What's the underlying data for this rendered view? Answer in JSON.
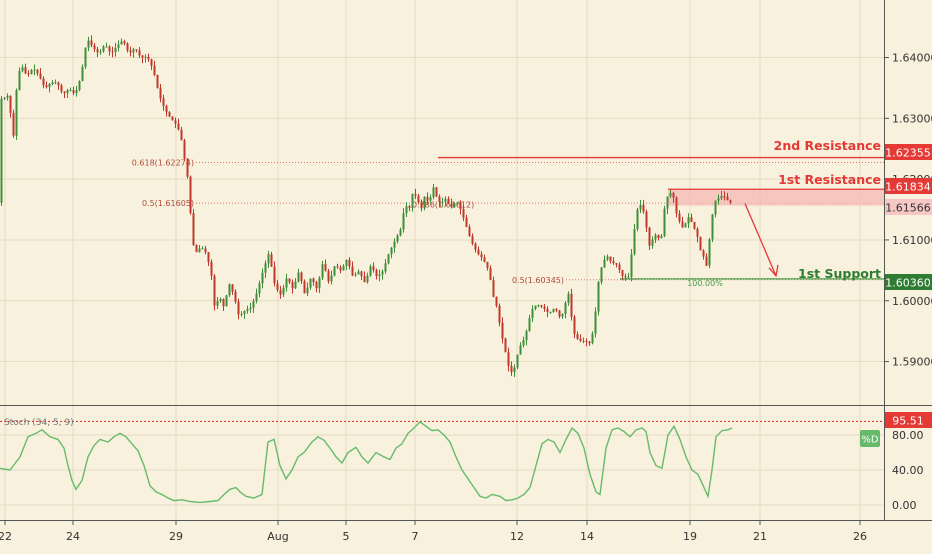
{
  "colors": {
    "background": "#f7f1de",
    "up_candle": "#3f8f3a",
    "down_candle": "#c0392b",
    "resistance": "#e53935",
    "support": "#43a047",
    "stoch_line": "#66bb6a",
    "grid": "#e6dcc2"
  },
  "chart_data": [
    {
      "type": "candlestick",
      "title": "",
      "x_tick_labels": [
        "22",
        "24",
        "29",
        "Aug",
        "5",
        "7",
        "12",
        "14",
        "19",
        "21",
        "26"
      ],
      "y_tick_labels": [
        "1.64000",
        "1.63000",
        "1.62000",
        "1.61000",
        "1.60000",
        "1.59000"
      ],
      "ylim": [
        1.5845,
        1.6465
      ],
      "grid": true,
      "price_path": [
        [
          0,
          1.6331
        ],
        [
          6,
          1.6334
        ],
        [
          10,
          1.6339
        ],
        [
          14,
          1.6259
        ],
        [
          18,
          1.6359
        ],
        [
          22,
          1.6389
        ],
        [
          28,
          1.6369
        ],
        [
          34,
          1.6383
        ],
        [
          40,
          1.6371
        ],
        [
          46,
          1.6349
        ],
        [
          52,
          1.6359
        ],
        [
          58,
          1.6359
        ],
        [
          64,
          1.6339
        ],
        [
          70,
          1.6349
        ],
        [
          76,
          1.6339
        ],
        [
          82,
          1.6369
        ],
        [
          88,
          1.6432
        ],
        [
          94,
          1.6416
        ],
        [
          100,
          1.6406
        ],
        [
          106,
          1.6422
        ],
        [
          112,
          1.6406
        ],
        [
          118,
          1.6419
        ],
        [
          124,
          1.6429
        ],
        [
          130,
          1.6406
        ],
        [
          136,
          1.6416
        ],
        [
          142,
          1.6399
        ],
        [
          148,
          1.6402
        ],
        [
          152,
          1.6389
        ],
        [
          156,
          1.6369
        ],
        [
          160,
          1.6339
        ],
        [
          166,
          1.6314
        ],
        [
          172,
          1.6299
        ],
        [
          178,
          1.6289
        ],
        [
          182,
          1.6269
        ],
        [
          186,
          1.6229
        ],
        [
          190,
          1.6189
        ],
        [
          193,
          1.6099
        ],
        [
          197,
          1.6079
        ],
        [
          202,
          1.6089
        ],
        [
          207,
          1.6079
        ],
        [
          212,
          1.6049
        ],
        [
          216,
          1.5984
        ],
        [
          220,
          1.6009
        ],
        [
          225,
          1.5989
        ],
        [
          230,
          1.6029
        ],
        [
          235,
          1.6009
        ],
        [
          240,
          1.5974
        ],
        [
          246,
          1.5984
        ],
        [
          252,
          1.5989
        ],
        [
          258,
          1.6014
        ],
        [
          264,
          1.6049
        ],
        [
          270,
          1.6079
        ],
        [
          276,
          1.6024
        ],
        [
          282,
          1.6009
        ],
        [
          288,
          1.6039
        ],
        [
          294,
          1.6019
        ],
        [
          300,
          1.6049
        ],
        [
          306,
          1.6009
        ],
        [
          312,
          1.6039
        ],
        [
          318,
          1.6019
        ],
        [
          324,
          1.6064
        ],
        [
          330,
          1.6029
        ],
        [
          336,
          1.6059
        ],
        [
          342,
          1.6049
        ],
        [
          348,
          1.6069
        ],
        [
          354,
          1.6039
        ],
        [
          360,
          1.6049
        ],
        [
          366,
          1.6029
        ],
        [
          372,
          1.6059
        ],
        [
          378,
          1.6039
        ],
        [
          384,
          1.6049
        ],
        [
          390,
          1.6079
        ],
        [
          396,
          1.6099
        ],
        [
          402,
          1.6119
        ],
        [
          406,
          1.6159
        ],
        [
          410,
          1.6149
        ],
        [
          414,
          1.6179
        ],
        [
          418,
          1.6169
        ],
        [
          422,
          1.6149
        ],
        [
          426,
          1.6174
        ],
        [
          430,
          1.6159
        ],
        [
          434,
          1.6189
        ],
        [
          438,
          1.6169
        ],
        [
          442,
          1.6159
        ],
        [
          446,
          1.6169
        ],
        [
          452,
          1.6154
        ],
        [
          458,
          1.6164
        ],
        [
          462,
          1.6149
        ],
        [
          466,
          1.6129
        ],
        [
          472,
          1.6099
        ],
        [
          478,
          1.6079
        ],
        [
          484,
          1.6069
        ],
        [
          490,
          1.6049
        ],
        [
          494,
          1.6009
        ],
        [
          498,
          1.5989
        ],
        [
          502,
          1.5949
        ],
        [
          506,
          1.5919
        ],
        [
          510,
          1.5889
        ],
        [
          514,
          1.5879
        ],
        [
          518,
          1.5909
        ],
        [
          522,
          1.5929
        ],
        [
          526,
          1.5939
        ],
        [
          530,
          1.5969
        ],
        [
          534,
          1.5989
        ],
        [
          538,
          1.5994
        ],
        [
          544,
          1.5989
        ],
        [
          550,
          1.5979
        ],
        [
          556,
          1.5989
        ],
        [
          562,
          1.5969
        ],
        [
          566,
          1.5994
        ],
        [
          570,
          1.6014
        ],
        [
          574,
          1.5949
        ],
        [
          580,
          1.5934
        ],
        [
          586,
          1.5934
        ],
        [
          592,
          1.5929
        ],
        [
          596,
          1.5974
        ],
        [
          600,
          1.6039
        ],
        [
          604,
          1.6064
        ],
        [
          608,
          1.6074
        ],
        [
          612,
          1.6064
        ],
        [
          618,
          1.6059
        ],
        [
          624,
          1.6039
        ],
        [
          630,
          1.6039
        ],
        [
          634,
          1.6099
        ],
        [
          638,
          1.6149
        ],
        [
          642,
          1.6159
        ],
        [
          646,
          1.6139
        ],
        [
          650,
          1.6089
        ],
        [
          656,
          1.6109
        ],
        [
          662,
          1.6099
        ],
        [
          666,
          1.6159
        ],
        [
          670,
          1.6179
        ],
        [
          674,
          1.6174
        ],
        [
          678,
          1.6139
        ],
        [
          684,
          1.6119
        ],
        [
          690,
          1.6139
        ],
        [
          694,
          1.6124
        ],
        [
          698,
          1.6109
        ],
        [
          702,
          1.6079
        ],
        [
          706,
          1.6069
        ],
        [
          708,
          1.6054
        ],
        [
          712,
          1.6129
        ],
        [
          716,
          1.6164
        ],
        [
          720,
          1.6169
        ],
        [
          724,
          1.6174
        ],
        [
          728,
          1.6166
        ],
        [
          732,
          1.6161
        ]
      ],
      "levels": [
        {
          "label": "2nd Resistance",
          "value": "1.62355",
          "price": 1.62355,
          "kind": "resistance"
        },
        {
          "label": "1st Resistance",
          "value": "1.61834",
          "price": 1.61834,
          "kind": "resistance"
        },
        {
          "label": "",
          "value": "1.61566",
          "price": 1.61566,
          "kind": "zone"
        },
        {
          "label": "1st Support",
          "value": "1.60360",
          "price": 1.6036,
          "kind": "support"
        }
      ],
      "fib_labels": [
        {
          "text": "0.618(1.62274)",
          "price": 1.62274
        },
        {
          "text": "0.5(1.61605)",
          "price": 1.61605
        },
        {
          "text": "0.786(1.61612)",
          "price": 1.61612
        },
        {
          "text": "0.5(1.60345)",
          "price": 1.60345
        },
        {
          "text": "100.00%",
          "price": 1.60345
        }
      ]
    },
    {
      "type": "line",
      "series_name": "Stoch (34, 5, 9)",
      "legend_tag": "%D",
      "level_value": "95.51",
      "level": 95.51,
      "ylim": [
        -8,
        104
      ],
      "y_tick_labels": [
        "80.00",
        "40.00",
        "0.00"
      ],
      "y_ticks": [
        80,
        40,
        0
      ],
      "values": [
        [
          0,
          42
        ],
        [
          10,
          40
        ],
        [
          20,
          55
        ],
        [
          28,
          78
        ],
        [
          36,
          82
        ],
        [
          42,
          86
        ],
        [
          50,
          78
        ],
        [
          58,
          75
        ],
        [
          64,
          65
        ],
        [
          68,
          45
        ],
        [
          72,
          28
        ],
        [
          76,
          18
        ],
        [
          82,
          28
        ],
        [
          88,
          55
        ],
        [
          94,
          68
        ],
        [
          100,
          75
        ],
        [
          108,
          72
        ],
        [
          114,
          78
        ],
        [
          120,
          82
        ],
        [
          126,
          78
        ],
        [
          132,
          70
        ],
        [
          138,
          62
        ],
        [
          144,
          45
        ],
        [
          150,
          22
        ],
        [
          156,
          15
        ],
        [
          162,
          12
        ],
        [
          168,
          8
        ],
        [
          174,
          5
        ],
        [
          182,
          6
        ],
        [
          190,
          4
        ],
        [
          200,
          3
        ],
        [
          210,
          4
        ],
        [
          218,
          5
        ],
        [
          224,
          12
        ],
        [
          230,
          18
        ],
        [
          236,
          20
        ],
        [
          240,
          15
        ],
        [
          246,
          10
        ],
        [
          254,
          8
        ],
        [
          262,
          12
        ],
        [
          268,
          72
        ],
        [
          274,
          75
        ],
        [
          280,
          45
        ],
        [
          286,
          30
        ],
        [
          292,
          40
        ],
        [
          298,
          55
        ],
        [
          304,
          60
        ],
        [
          312,
          72
        ],
        [
          318,
          78
        ],
        [
          324,
          74
        ],
        [
          330,
          65
        ],
        [
          336,
          55
        ],
        [
          342,
          48
        ],
        [
          348,
          60
        ],
        [
          356,
          66
        ],
        [
          362,
          55
        ],
        [
          368,
          48
        ],
        [
          376,
          60
        ],
        [
          384,
          55
        ],
        [
          390,
          52
        ],
        [
          396,
          65
        ],
        [
          402,
          70
        ],
        [
          408,
          82
        ],
        [
          414,
          88
        ],
        [
          420,
          95
        ],
        [
          426,
          90
        ],
        [
          432,
          85
        ],
        [
          438,
          86
        ],
        [
          444,
          80
        ],
        [
          450,
          72
        ],
        [
          456,
          55
        ],
        [
          462,
          40
        ],
        [
          468,
          30
        ],
        [
          474,
          20
        ],
        [
          480,
          10
        ],
        [
          486,
          8
        ],
        [
          492,
          12
        ],
        [
          500,
          10
        ],
        [
          506,
          5
        ],
        [
          512,
          6
        ],
        [
          518,
          8
        ],
        [
          524,
          12
        ],
        [
          530,
          20
        ],
        [
          536,
          45
        ],
        [
          542,
          70
        ],
        [
          548,
          75
        ],
        [
          554,
          72
        ],
        [
          560,
          60
        ],
        [
          566,
          75
        ],
        [
          572,
          88
        ],
        [
          578,
          82
        ],
        [
          584,
          65
        ],
        [
          590,
          35
        ],
        [
          596,
          15
        ],
        [
          600,
          12
        ],
        [
          606,
          65
        ],
        [
          612,
          86
        ],
        [
          618,
          88
        ],
        [
          624,
          84
        ],
        [
          630,
          78
        ],
        [
          636,
          86
        ],
        [
          642,
          88
        ],
        [
          646,
          84
        ],
        [
          650,
          60
        ],
        [
          656,
          45
        ],
        [
          662,
          42
        ],
        [
          668,
          80
        ],
        [
          674,
          90
        ],
        [
          680,
          75
        ],
        [
          686,
          55
        ],
        [
          692,
          40
        ],
        [
          698,
          35
        ],
        [
          704,
          20
        ],
        [
          708,
          10
        ],
        [
          712,
          40
        ],
        [
          716,
          78
        ],
        [
          722,
          85
        ],
        [
          728,
          86
        ],
        [
          732,
          88
        ]
      ]
    }
  ]
}
